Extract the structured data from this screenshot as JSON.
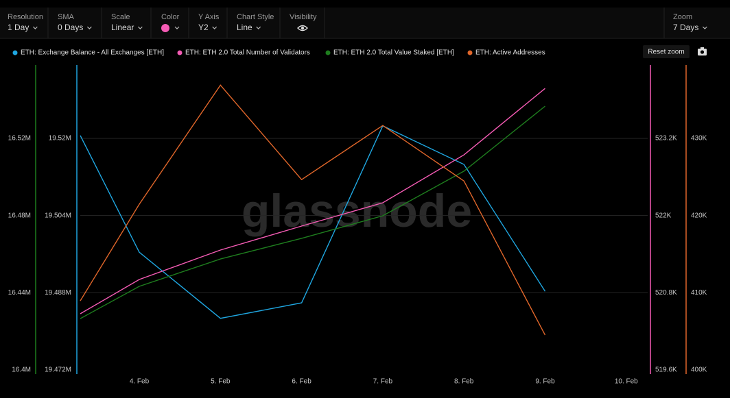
{
  "toolbar": {
    "items": [
      {
        "label": "Resolution",
        "value": "1 Day"
      },
      {
        "label": "SMA",
        "value": "0 Days"
      },
      {
        "label": "Scale",
        "value": "Linear"
      },
      {
        "label": "Color",
        "color": "#f45bb4"
      },
      {
        "label": "Y Axis",
        "value": "Y2"
      },
      {
        "label": "Chart Style",
        "value": "Line"
      },
      {
        "label": "Visibility"
      }
    ],
    "zoom": {
      "label": "Zoom",
      "value": "7 Days"
    },
    "reset": "Reset zoom"
  },
  "chart_data": {
    "type": "line",
    "watermark": "glassnode",
    "categories": [
      null,
      "4. Feb",
      "5. Feb",
      "6. Feb",
      "7. Feb",
      "8. Feb",
      "9. Feb",
      "10. Feb"
    ],
    "series": [
      {
        "name": "ETH: Exchange Balance - All Exchanges [ETH]",
        "color": "#1fa6e0",
        "axis": "y",
        "values": [
          19520600,
          19496400,
          19482700,
          19485900,
          19522600,
          19514600,
          19488300,
          null
        ]
      },
      {
        "name": "ETH: ETH 2.0 Total Number of Validators",
        "color": "#f45bb4",
        "axis": "y2",
        "values": [
          520473,
          521006,
          521464,
          521837,
          522199,
          522944,
          523977,
          null
        ]
      },
      {
        "name": "ETH: ETH 2.0 Total Value Staked [ETH]",
        "color": "#1e7d1e",
        "axis": "y3",
        "values": [
          16426600,
          16443300,
          16457500,
          16468200,
          16479900,
          16503000,
          16536700,
          null
        ]
      },
      {
        "name": "ETH: Active Addresses",
        "color": "#e0662a",
        "axis": "y4",
        "values": [
          408960,
          421470,
          436900,
          424660,
          431670,
          424480,
          404520,
          null
        ]
      }
    ],
    "ylim": [
      19472000,
      19535200
    ],
    "yticks": [
      {
        "value": 19472000,
        "label": "19.472M"
      },
      {
        "value": 19488000,
        "label": "19.488M"
      },
      {
        "value": 19504000,
        "label": "19.504M"
      },
      {
        "value": 19520000,
        "label": "19.52M"
      }
    ],
    "y2lim": [
      519600,
      524340
    ],
    "y2ticks": [
      {
        "value": 519600,
        "label": "519.6K"
      },
      {
        "value": 520800,
        "label": "520.8K"
      },
      {
        "value": 522000,
        "label": "522K"
      },
      {
        "value": 523200,
        "label": "523.2K"
      }
    ],
    "y3lim": [
      16400000,
      16558000
    ],
    "y3ticks": [
      {
        "value": 16400000,
        "label": "16.4M"
      },
      {
        "value": 16440000,
        "label": "16.44M"
      },
      {
        "value": 16480000,
        "label": "16.48M"
      },
      {
        "value": 16520000,
        "label": "16.52M"
      }
    ],
    "y4lim": [
      400000,
      439500
    ],
    "y4ticks": [
      {
        "value": 400000,
        "label": "400K"
      },
      {
        "value": 410000,
        "label": "410K"
      },
      {
        "value": 420000,
        "label": "420K"
      },
      {
        "value": 430000,
        "label": "430K"
      }
    ],
    "grid": true
  }
}
